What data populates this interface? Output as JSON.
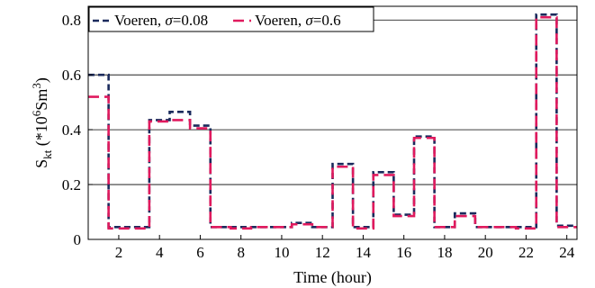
{
  "chart_data": {
    "type": "line",
    "step": true,
    "xlabel": "Time (hour)",
    "ylabel": "S_kt (*10^6Sm^3)",
    "ylabel_parts": {
      "main": "S",
      "sub": "kt",
      "open": " (*10",
      "sup1": "6",
      "mid": "Sm",
      "sup2": "3",
      "close": ")"
    },
    "xlim": [
      0.5,
      24.5
    ],
    "ylim": [
      0,
      0.85
    ],
    "xticks": [
      2,
      4,
      6,
      8,
      10,
      12,
      14,
      16,
      18,
      20,
      22,
      24
    ],
    "xtick_labels": [
      "2",
      "4",
      "6",
      "8",
      "10",
      "12",
      "14",
      "16",
      "18",
      "20",
      "22",
      "24"
    ],
    "yticks": [
      0,
      0.2,
      0.4,
      0.6,
      0.8
    ],
    "ytick_labels": [
      "0",
      "0.2",
      "0.4",
      "0.6",
      "0.8"
    ],
    "grid": "horizontal",
    "legend_position": "top-left",
    "x": [
      1,
      2,
      3,
      4,
      5,
      6,
      7,
      8,
      9,
      10,
      11,
      12,
      13,
      14,
      15,
      16,
      17,
      18,
      19,
      20,
      21,
      22,
      23,
      24
    ],
    "series": [
      {
        "name": "Voeren, σ=0.08",
        "name_parts": [
          "Voeren, ",
          "σ",
          "=0.08"
        ],
        "color": "#1a2a5c",
        "dash": "7,4",
        "values": [
          0.6,
          0.045,
          0.045,
          0.435,
          0.465,
          0.415,
          0.045,
          0.045,
          0.045,
          0.045,
          0.06,
          0.045,
          0.275,
          0.045,
          0.245,
          0.09,
          0.375,
          0.045,
          0.095,
          0.045,
          0.045,
          0.045,
          0.82,
          0.05
        ]
      },
      {
        "name": "Voeren, σ=0.6",
        "name_parts": [
          "Voeren, ",
          "σ",
          "=0.6"
        ],
        "color": "#e01a5e",
        "dash": "12,6",
        "values": [
          0.52,
          0.04,
          0.04,
          0.43,
          0.435,
          0.405,
          0.045,
          0.04,
          0.045,
          0.045,
          0.055,
          0.045,
          0.265,
          0.04,
          0.235,
          0.085,
          0.37,
          0.045,
          0.085,
          0.045,
          0.045,
          0.04,
          0.81,
          0.045
        ]
      }
    ]
  }
}
